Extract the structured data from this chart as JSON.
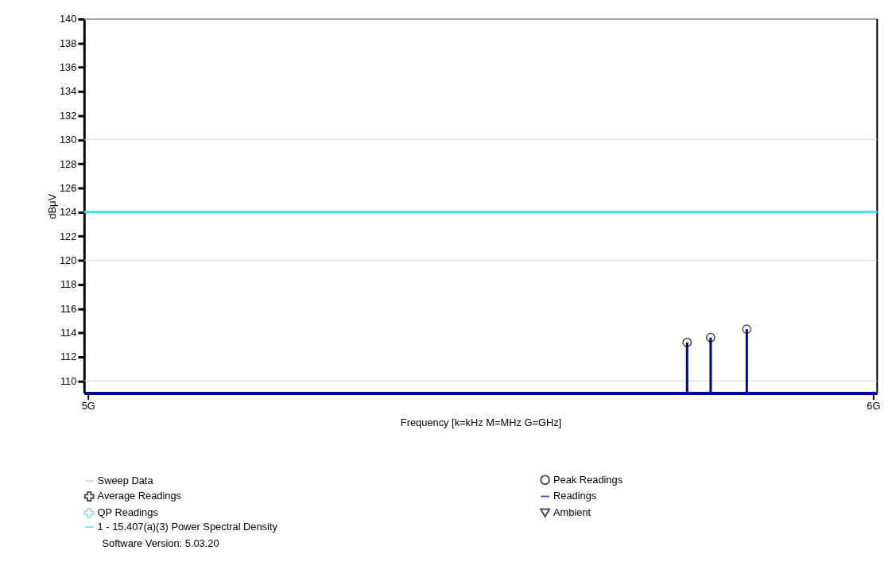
{
  "chart_data": {
    "type": "scatter",
    "xlabel": "Frequency [k=kHz M=MHz G=GHz]",
    "ylabel": "dBμV",
    "x": [
      5.763,
      5.793,
      5.839
    ],
    "series": [
      {
        "name": "Sweep Data",
        "type": "line",
        "color": "#c8c8e0",
        "values": [
          null,
          null,
          null
        ]
      },
      {
        "name": "Peak Readings",
        "marker": "circle",
        "color": "#000000",
        "values": [
          113.2,
          113.6,
          114.3
        ]
      },
      {
        "name": "Average Readings",
        "marker": "cross",
        "color": "#000000",
        "values": [
          null,
          null,
          null
        ]
      },
      {
        "name": "Readings",
        "type": "bar",
        "color": "#0000a0",
        "values": [
          113.2,
          113.6,
          114.3
        ]
      },
      {
        "name": "QP Readings",
        "marker": "cross",
        "color": "#80d0d8",
        "values": [
          null,
          null,
          null
        ]
      },
      {
        "name": "Ambient",
        "marker": "triangle",
        "color": "#000000",
        "values": [
          null,
          null,
          null
        ]
      }
    ],
    "xlim": [
      5,
      6
    ],
    "xticks": [
      {
        "value": 5,
        "label": "5G"
      },
      {
        "value": 6,
        "label": "6G"
      }
    ],
    "ylim": [
      109,
      140
    ],
    "yticks": [
      110,
      112,
      114,
      116,
      118,
      120,
      122,
      124,
      126,
      128,
      130,
      132,
      134,
      136,
      138,
      140
    ],
    "ref_lines": [
      {
        "axis": "y",
        "value": 124,
        "label": "1 - 15.407(a)(3) Power Spectral Density",
        "color": "#40e0e0"
      }
    ],
    "annotations": [
      "Software Version: 5.03.20"
    ],
    "grid": "y",
    "legend": "bottom"
  }
}
